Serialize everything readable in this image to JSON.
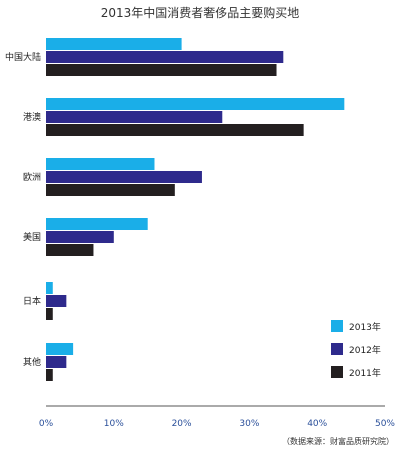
{
  "chart_data": {
    "type": "bar",
    "orientation": "horizontal",
    "title": "2013年中国消费者奢侈品主要购买地",
    "categories": [
      "中国大陆",
      "港澳",
      "欧洲",
      "美国",
      "日本",
      "其他"
    ],
    "series": [
      {
        "name": "2013年",
        "color": "#1aaee8",
        "values": [
          20,
          44,
          16,
          15,
          1,
          4
        ]
      },
      {
        "name": "2012年",
        "color": "#2e2a8c",
        "values": [
          35,
          26,
          23,
          10,
          3,
          3
        ]
      },
      {
        "name": "2011年",
        "color": "#231f20",
        "values": [
          34,
          38,
          19,
          7,
          1,
          1
        ]
      }
    ],
    "x_ticks": [
      "0%",
      "10%",
      "20%",
      "30%",
      "40%",
      "50%"
    ],
    "xlim": [
      0,
      50
    ],
    "grid": false,
    "legend_position": "bottom-right",
    "source": "（数据来源：财富品质研究院）"
  }
}
